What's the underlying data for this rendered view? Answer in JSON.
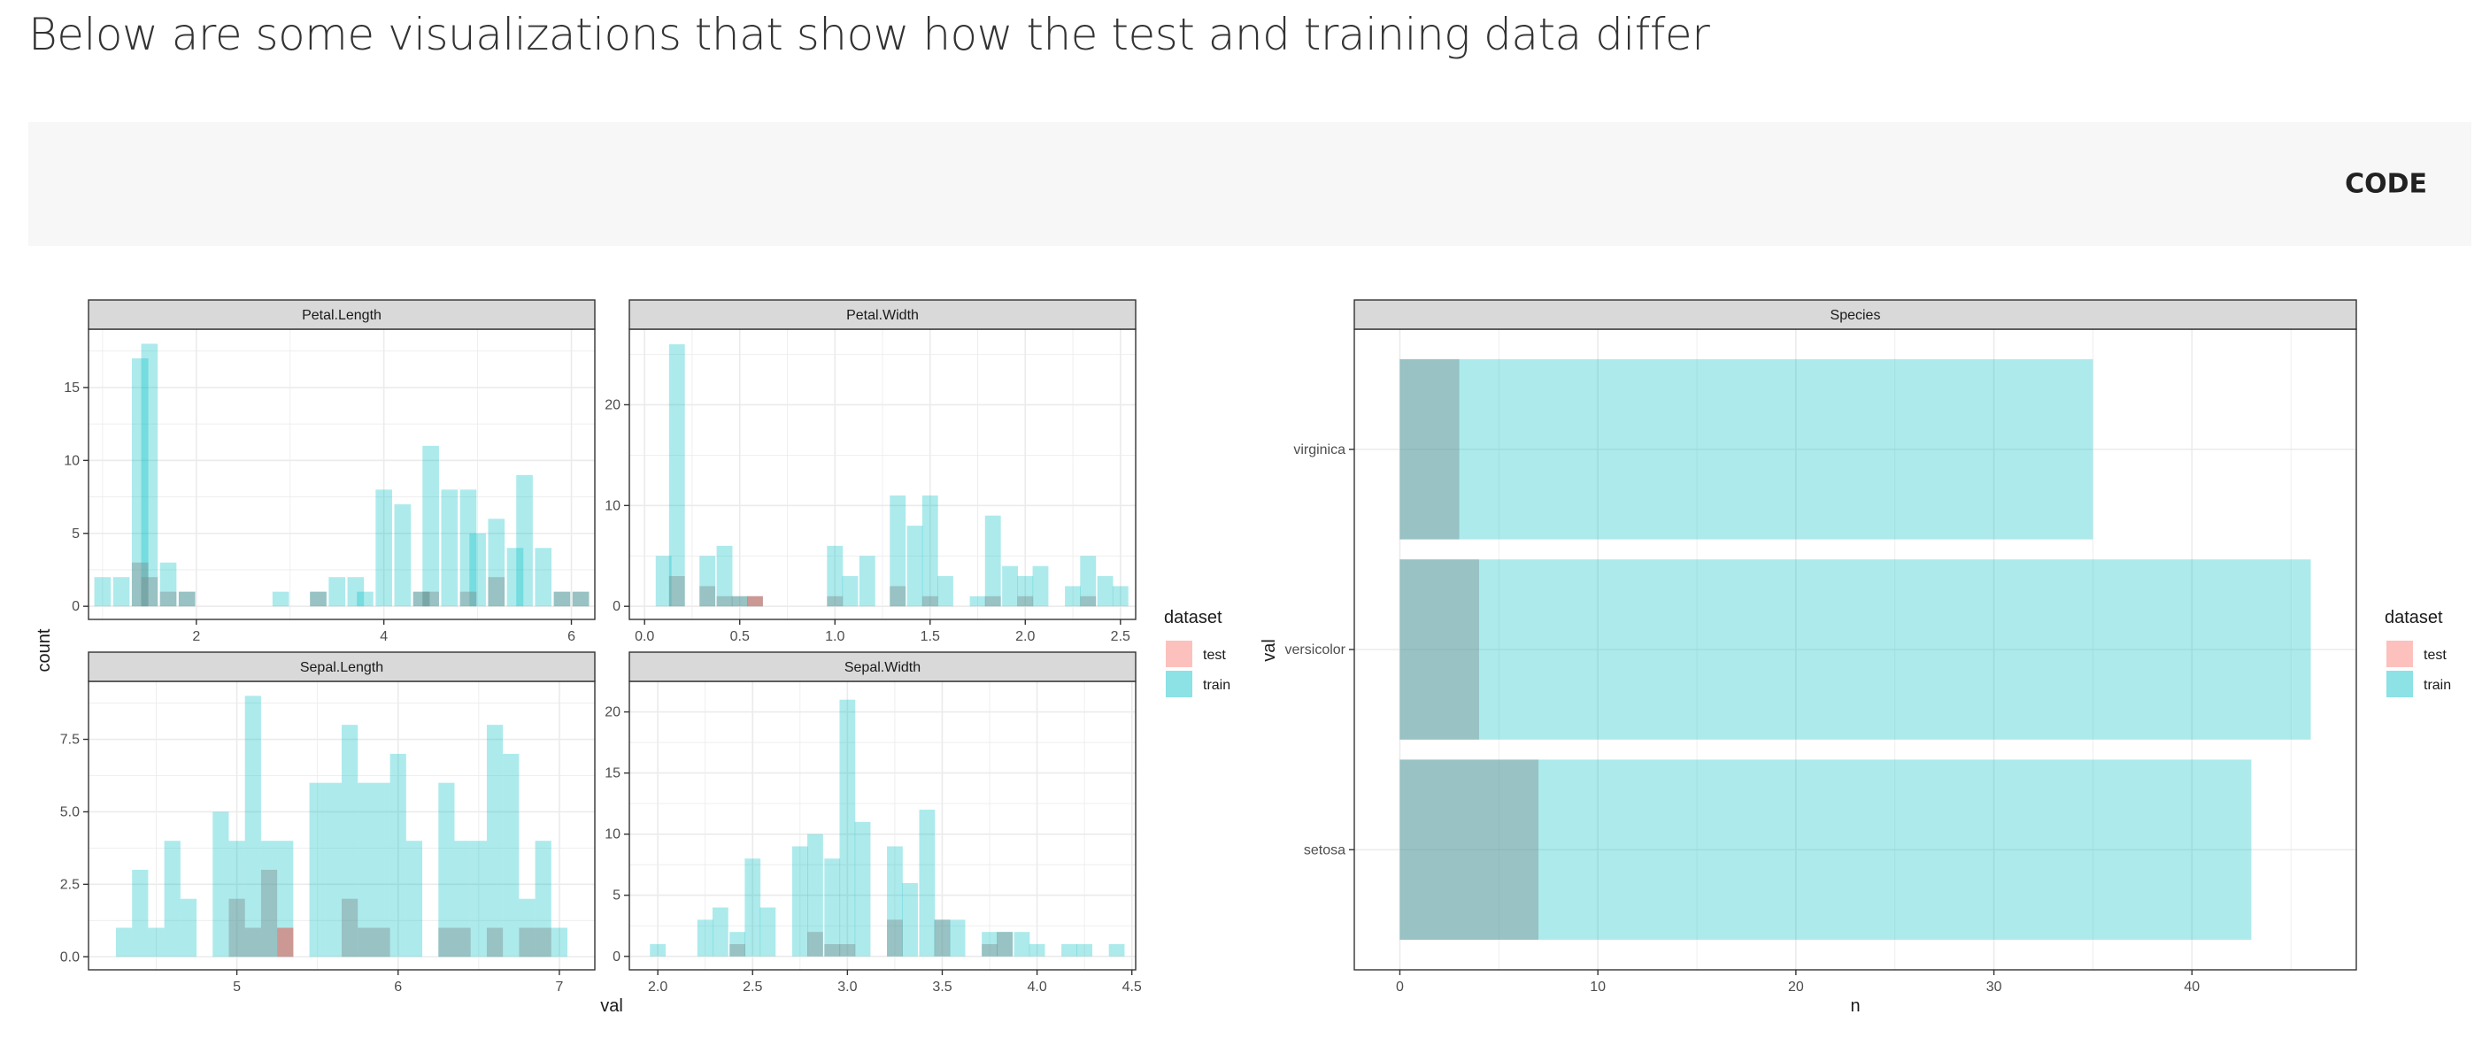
{
  "page": {
    "title": "Below are some visualizations that show how the test and training data differ",
    "code_button": "CODE"
  },
  "colors": {
    "test": "#F8766D",
    "train": "#00BFC4",
    "panel_strip": "#d9d9d9"
  },
  "chart_data": [
    {
      "type": "bar",
      "subtype": "faceted-histogram",
      "ylabel": "count",
      "xlabel": "val",
      "legend": {
        "title": "dataset",
        "entries": [
          "test",
          "train"
        ],
        "position": "right"
      },
      "facets": [
        {
          "name": "Petal.Length",
          "xlim": [
            0.85,
            6.25
          ],
          "ylim": [
            -0.9,
            19
          ],
          "xticks": [
            2,
            4,
            6
          ],
          "yticks": [
            0,
            5,
            10,
            15
          ],
          "ytick_labels": [
            "0",
            "5",
            "10",
            "15"
          ],
          "binwidth": 0.176,
          "train": [
            [
              1.0,
              2
            ],
            [
              1.2,
              2
            ],
            [
              1.4,
              17
            ],
            [
              1.5,
              18
            ],
            [
              1.7,
              3
            ],
            [
              1.9,
              1
            ],
            [
              2.9,
              1
            ],
            [
              3.3,
              1
            ],
            [
              3.5,
              2
            ],
            [
              3.7,
              2
            ],
            [
              3.8,
              1
            ],
            [
              4.0,
              8
            ],
            [
              4.2,
              7
            ],
            [
              4.4,
              1
            ],
            [
              4.5,
              11
            ],
            [
              4.7,
              8
            ],
            [
              4.9,
              8
            ],
            [
              5.0,
              5
            ],
            [
              5.2,
              6
            ],
            [
              5.4,
              4
            ],
            [
              5.5,
              9
            ],
            [
              5.7,
              4
            ],
            [
              5.9,
              1
            ],
            [
              6.1,
              1
            ]
          ],
          "test": [
            [
              1.4,
              3
            ],
            [
              1.5,
              2
            ],
            [
              1.7,
              1
            ],
            [
              1.9,
              1
            ],
            [
              3.3,
              1
            ],
            [
              4.4,
              1
            ],
            [
              4.5,
              1
            ],
            [
              4.9,
              1
            ],
            [
              5.2,
              2
            ],
            [
              5.9,
              1
            ],
            [
              6.1,
              1
            ]
          ]
        },
        {
          "name": "Petal.Width",
          "xlim": [
            -0.08,
            2.58
          ],
          "ylim": [
            -1.3,
            27.5
          ],
          "xticks": [
            0.0,
            0.5,
            1.0,
            1.5,
            2.0,
            2.5
          ],
          "yticks": [
            0,
            10,
            20
          ],
          "ytick_labels": [
            "0",
            "10",
            "20"
          ],
          "binwidth": 0.083,
          "train": [
            [
              0.1,
              5
            ],
            [
              0.17,
              26
            ],
            [
              0.33,
              5
            ],
            [
              0.42,
              6
            ],
            [
              0.5,
              1
            ],
            [
              0.58,
              1
            ],
            [
              1.0,
              6
            ],
            [
              1.08,
              3
            ],
            [
              1.17,
              5
            ],
            [
              1.33,
              11
            ],
            [
              1.42,
              8
            ],
            [
              1.5,
              11
            ],
            [
              1.58,
              3
            ],
            [
              1.75,
              1
            ],
            [
              1.83,
              9
            ],
            [
              1.92,
              4
            ],
            [
              2.0,
              3
            ],
            [
              2.08,
              4
            ],
            [
              2.25,
              2
            ],
            [
              2.33,
              5
            ],
            [
              2.42,
              3
            ],
            [
              2.5,
              2
            ]
          ],
          "test": [
            [
              0.17,
              3
            ],
            [
              0.33,
              2
            ],
            [
              0.42,
              1
            ],
            [
              0.5,
              1
            ],
            [
              0.58,
              1
            ],
            [
              1.0,
              1
            ],
            [
              1.33,
              2
            ],
            [
              1.5,
              1
            ],
            [
              1.83,
              1
            ],
            [
              2.0,
              1
            ],
            [
              2.33,
              1
            ]
          ],
          "test_only": [
            [
              0.58,
              1
            ]
          ]
        },
        {
          "name": "Sepal.Length",
          "xlim": [
            4.08,
            7.22
          ],
          "ylim": [
            -0.45,
            9.5
          ],
          "xticks": [
            5,
            6,
            7
          ],
          "yticks": [
            0,
            2.5,
            5,
            7.5
          ],
          "ytick_labels": [
            "0.0",
            "2.5",
            "5.0",
            "7.5"
          ],
          "binwidth": 0.1,
          "train": [
            [
              4.3,
              1
            ],
            [
              4.4,
              3
            ],
            [
              4.5,
              1
            ],
            [
              4.6,
              4
            ],
            [
              4.7,
              2
            ],
            [
              4.9,
              5
            ],
            [
              5.0,
              4
            ],
            [
              5.1,
              9
            ],
            [
              5.2,
              4
            ],
            [
              5.3,
              4
            ],
            [
              5.4,
              0
            ],
            [
              5.5,
              6
            ],
            [
              5.6,
              6
            ],
            [
              5.7,
              8
            ],
            [
              5.8,
              6
            ],
            [
              5.9,
              6
            ],
            [
              6.0,
              7
            ],
            [
              6.1,
              4
            ],
            [
              6.2,
              0
            ],
            [
              6.3,
              6
            ],
            [
              6.4,
              4
            ],
            [
              6.5,
              4
            ],
            [
              6.6,
              8
            ],
            [
              6.7,
              7
            ],
            [
              6.8,
              2
            ],
            [
              6.9,
              4
            ],
            [
              7.0,
              1
            ]
          ],
          "test": [
            [
              5.0,
              2
            ],
            [
              5.1,
              1
            ],
            [
              5.2,
              3
            ],
            [
              5.3,
              1
            ],
            [
              5.7,
              2
            ],
            [
              5.8,
              1
            ],
            [
              5.9,
              1
            ],
            [
              6.0,
              0
            ],
            [
              6.3,
              1
            ],
            [
              6.4,
              1
            ],
            [
              6.6,
              1
            ],
            [
              6.8,
              1
            ],
            [
              6.9,
              1
            ]
          ],
          "test_only": [
            [
              5.3,
              1
            ]
          ]
        },
        {
          "name": "Sepal.Width",
          "xlim": [
            1.85,
            4.52
          ],
          "ylim": [
            -1.1,
            22.5
          ],
          "xticks": [
            2.0,
            2.5,
            3.0,
            3.5,
            4.0,
            4.5
          ],
          "yticks": [
            0,
            5,
            10,
            15,
            20
          ],
          "ytick_labels": [
            "0",
            "5",
            "10",
            "15",
            "20"
          ],
          "binwidth": 0.083,
          "train": [
            [
              2.0,
              1
            ],
            [
              2.25,
              3
            ],
            [
              2.33,
              4
            ],
            [
              2.42,
              2
            ],
            [
              2.5,
              8
            ],
            [
              2.58,
              4
            ],
            [
              2.75,
              9
            ],
            [
              2.83,
              10
            ],
            [
              2.92,
              8
            ],
            [
              3.0,
              21
            ],
            [
              3.08,
              11
            ],
            [
              3.25,
              9
            ],
            [
              3.33,
              6
            ],
            [
              3.42,
              12
            ],
            [
              3.5,
              3
            ],
            [
              3.58,
              3
            ],
            [
              3.75,
              2
            ],
            [
              3.83,
              2
            ],
            [
              3.92,
              2
            ],
            [
              4.0,
              1
            ],
            [
              4.17,
              1
            ],
            [
              4.25,
              1
            ],
            [
              4.42,
              1
            ]
          ],
          "test": [
            [
              2.42,
              1
            ],
            [
              2.83,
              2
            ],
            [
              2.92,
              1
            ],
            [
              3.0,
              1
            ],
            [
              3.25,
              3
            ],
            [
              3.5,
              3
            ],
            [
              3.75,
              1
            ],
            [
              3.83,
              2
            ]
          ]
        }
      ]
    },
    {
      "type": "bar",
      "subtype": "horizontal-overlaid",
      "facet": "Species",
      "categories": [
        "virginica",
        "versicolor",
        "setosa"
      ],
      "series": [
        {
          "name": "train",
          "values": [
            35,
            46,
            43
          ]
        },
        {
          "name": "test",
          "values": [
            3,
            4,
            7
          ]
        }
      ],
      "xlabel": "n",
      "ylabel": "val",
      "xlim": [
        -2.3,
        48.3
      ],
      "xticks": [
        0,
        10,
        20,
        30,
        40
      ],
      "legend": {
        "title": "dataset",
        "entries": [
          "test",
          "train"
        ],
        "position": "right"
      }
    }
  ]
}
